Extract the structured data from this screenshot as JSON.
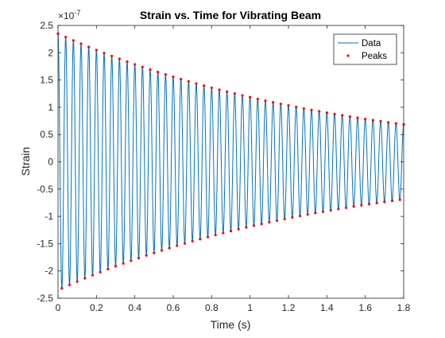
{
  "chart_data": {
    "type": "line",
    "title": "Strain vs. Time for Vibrating Beam",
    "xlabel": "Time (s)",
    "ylabel": "Strain",
    "exponent_label": "×10",
    "exponent_power": "-7",
    "xlim": [
      0,
      1.8
    ],
    "ylim": [
      -2.5e-07,
      2.5e-07
    ],
    "x_ticks": [
      0,
      0.2,
      0.4,
      0.6,
      0.8,
      1.0,
      1.2,
      1.4,
      1.6,
      1.8
    ],
    "x_tick_labels": [
      "0",
      "0.2",
      "0.4",
      "0.6",
      "0.8",
      "1",
      "1.2",
      "1.4",
      "1.6",
      "1.8"
    ],
    "y_ticks": [
      -2.5,
      -2,
      -1.5,
      -1,
      -0.5,
      0,
      0.5,
      1,
      1.5,
      2,
      2.5
    ],
    "y_tick_labels": [
      "-2.5",
      "-2",
      "-1.5",
      "-1",
      "-0.5",
      "0",
      "0.5",
      "1",
      "1.5",
      "2",
      "2.5"
    ],
    "grid": false,
    "legend_position": "top-right",
    "series": [
      {
        "name": "Data",
        "style": "line",
        "color": "#0072BD",
        "model": "damped_sine",
        "amplitude": 2.35e-07,
        "decay_rate": 0.685,
        "frequency_hz": 25,
        "x_start": 0,
        "x_end": 1.8
      },
      {
        "name": "Peaks",
        "style": "markers",
        "color": "#FF0000",
        "points": "local maxima and minima of Data"
      }
    ]
  }
}
